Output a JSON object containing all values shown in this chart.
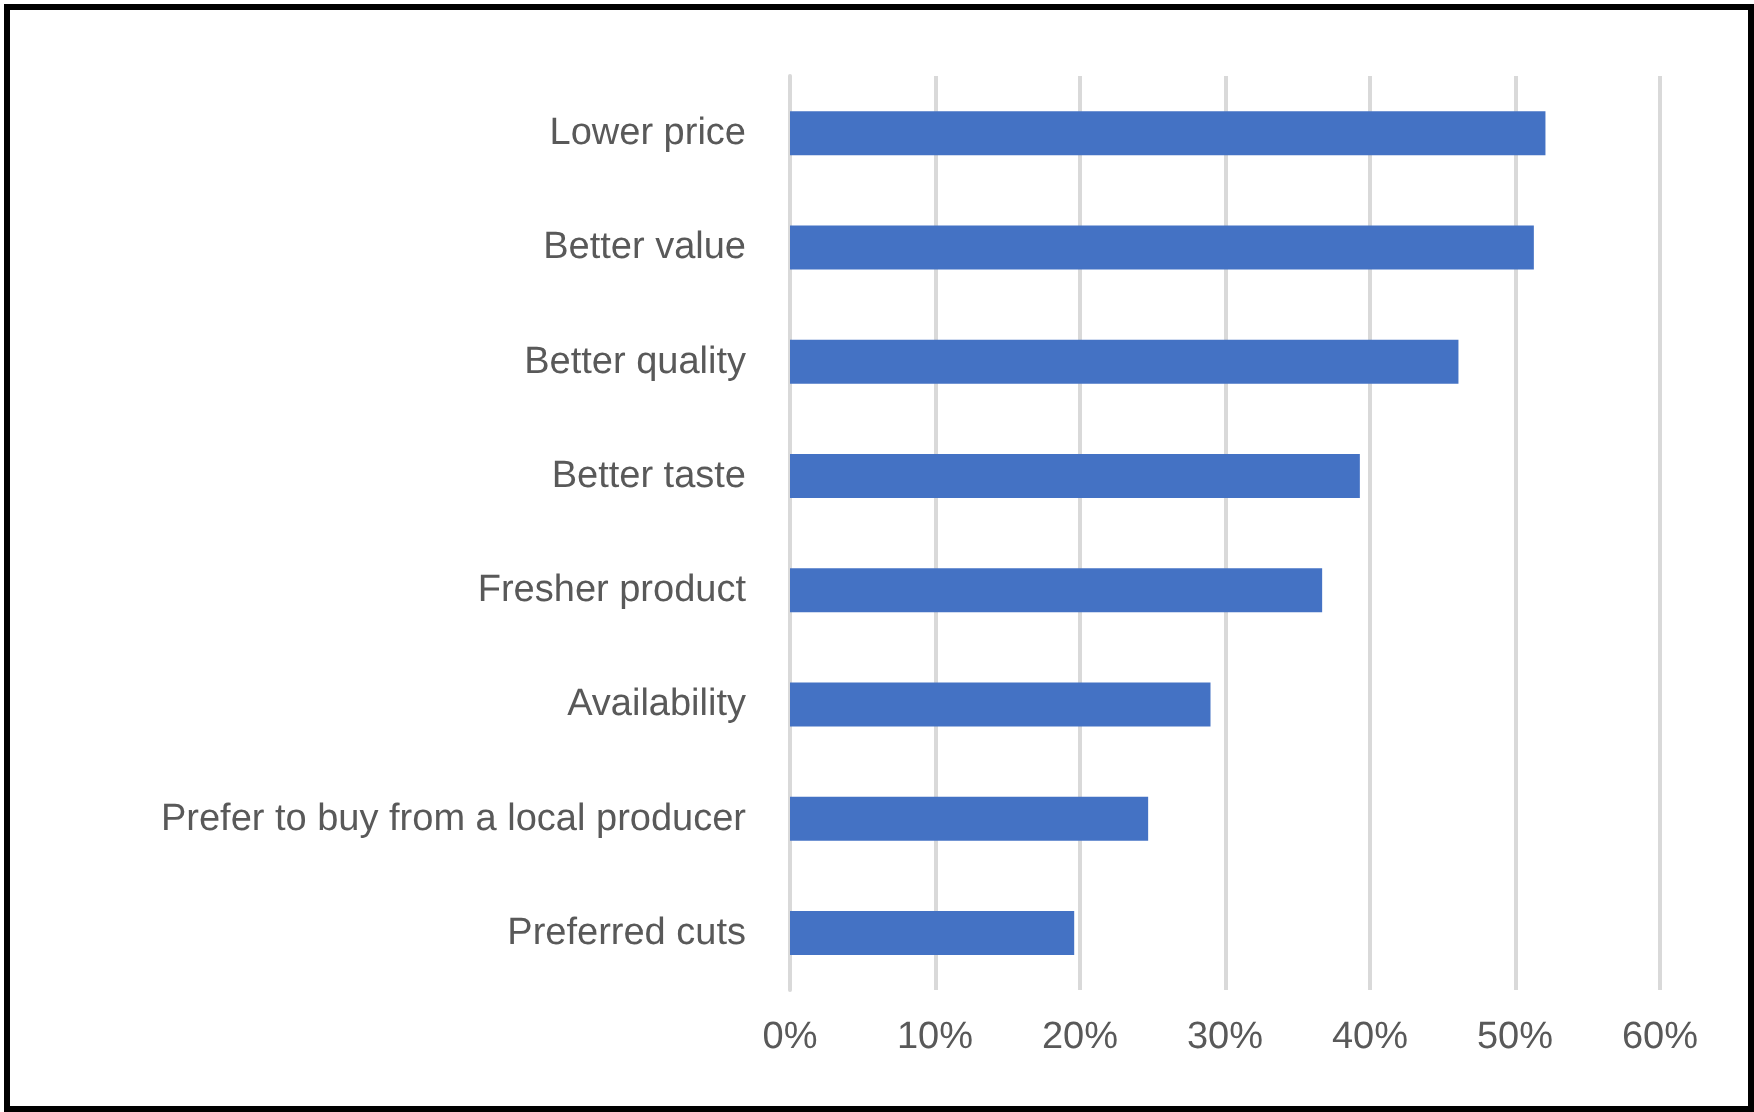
{
  "chart_data": {
    "type": "bar",
    "orientation": "horizontal",
    "categories": [
      "Lower price",
      "Better value",
      "Better quality",
      "Better taste",
      "Fresher product",
      "Availability",
      "Prefer to buy from a local producer",
      "Preferred cuts"
    ],
    "values": [
      52.1,
      51.3,
      46.1,
      39.3,
      36.7,
      29.0,
      24.7,
      19.6
    ],
    "color": "#4472c4",
    "xlim": [
      0,
      60
    ],
    "xticks": [
      {
        "value": 0,
        "label": "0%"
      },
      {
        "value": 10,
        "label": "10%"
      },
      {
        "value": 20,
        "label": "20%"
      },
      {
        "value": 30,
        "label": "30%"
      },
      {
        "value": 40,
        "label": "40%"
      },
      {
        "value": 50,
        "label": "50%"
      },
      {
        "value": 60,
        "label": "60%"
      }
    ],
    "grid": "x"
  }
}
